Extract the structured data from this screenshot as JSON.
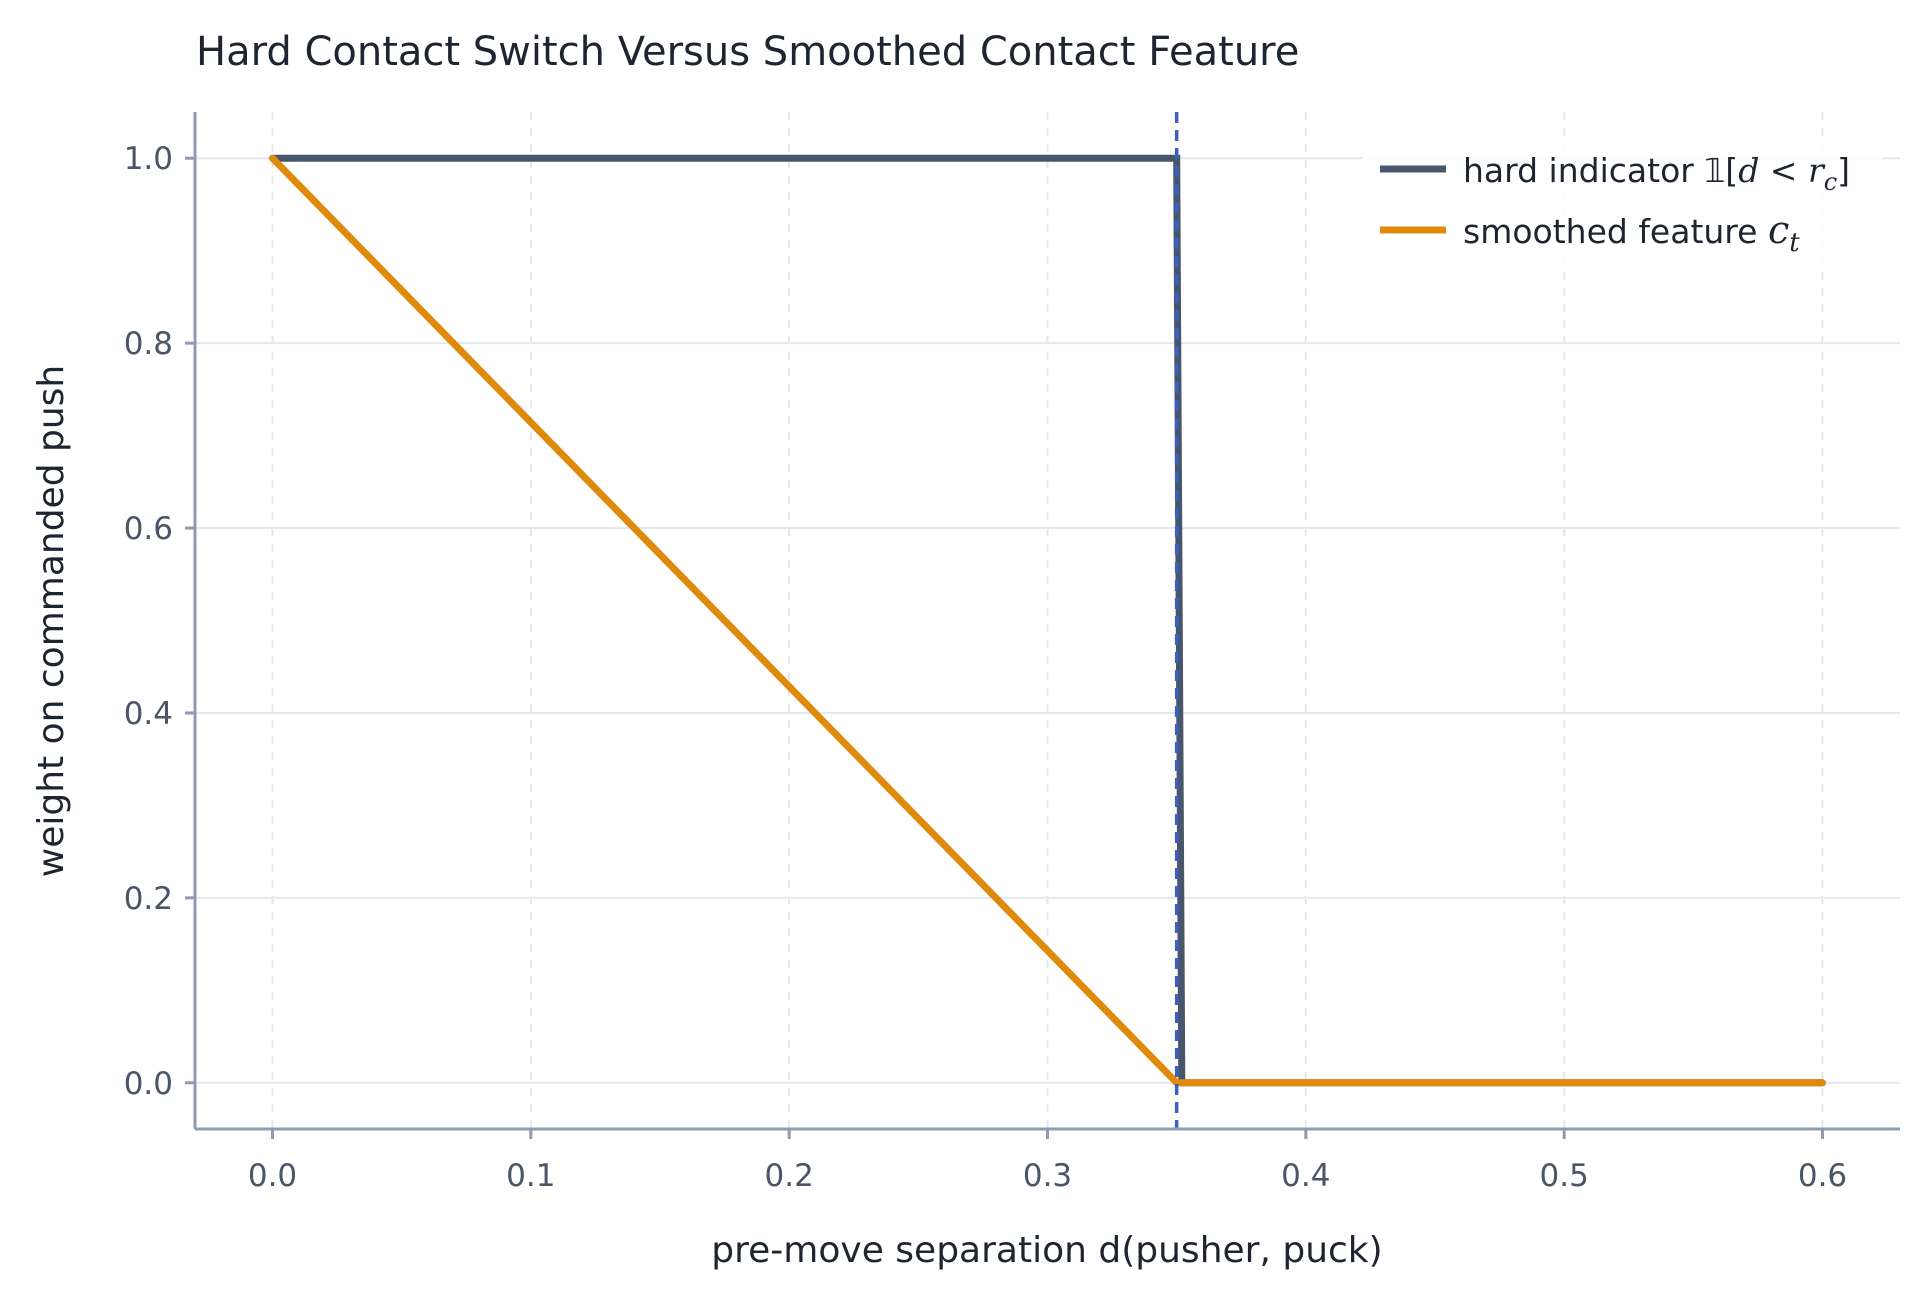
{
  "chart_data": {
    "type": "line",
    "title": "Hard Contact Switch Versus Smoothed Contact Feature",
    "xlabel": "pre-move separation d(pusher, puck)",
    "ylabel": "weight on commanded push",
    "xlim": [
      -0.03,
      0.63
    ],
    "ylim": [
      -0.05,
      1.05
    ],
    "xticks": [
      0.0,
      0.1,
      0.2,
      0.3,
      0.4,
      0.5,
      0.6
    ],
    "xtick_labels": [
      "0.0",
      "0.1",
      "0.2",
      "0.3",
      "0.4",
      "0.5",
      "0.6"
    ],
    "yticks": [
      0.0,
      0.2,
      0.4,
      0.6,
      0.8,
      1.0
    ],
    "ytick_labels": [
      "0.0",
      "0.2",
      "0.4",
      "0.6",
      "0.8",
      "1.0"
    ],
    "grid": true,
    "legend_position": "top-right",
    "threshold": {
      "x": 0.35,
      "color": "#3b5fc4",
      "style": "dashed"
    },
    "series": [
      {
        "name": "hard indicator 𝟙[d < r_c]",
        "legend_prefix": "hard indicator 𝟙[",
        "legend_math": "d < r",
        "legend_sub": "c",
        "legend_suffix": "]",
        "color": "#47566b",
        "x": [
          0.0,
          0.35,
          0.352,
          0.6
        ],
        "y": [
          1.0,
          1.0,
          0.0,
          0.0
        ]
      },
      {
        "name": "smoothed feature c_t",
        "legend_prefix": "smoothed feature ",
        "legend_math": "c",
        "legend_sub": "t",
        "legend_suffix": "",
        "color": "#e08a0b",
        "x": [
          0.0,
          0.35,
          0.6
        ],
        "y": [
          1.0,
          0.0,
          0.0
        ]
      }
    ]
  }
}
